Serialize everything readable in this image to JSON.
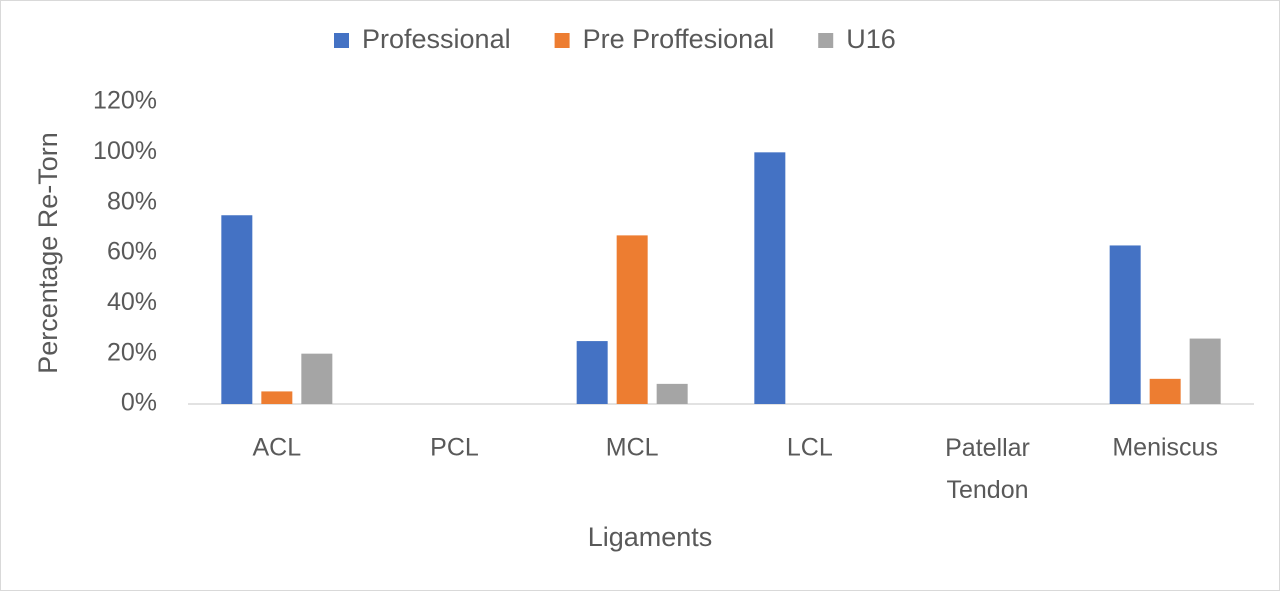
{
  "chart_data": {
    "type": "bar",
    "y_label": "Percentage Re-Torn",
    "x_label": "Ligaments",
    "categories": [
      "ACL",
      "PCL",
      "MCL",
      "LCL",
      "Patellar Tendon",
      "Meniscus"
    ],
    "series": [
      {
        "name": "Professional",
        "color": "#4472c4",
        "values": [
          75,
          0,
          25,
          100,
          0,
          63
        ]
      },
      {
        "name": "Pre Proffesional",
        "color": "#ed7d31",
        "values": [
          5,
          0,
          67,
          0,
          0,
          10
        ]
      },
      {
        "name": "U16",
        "color": "#a5a5a5",
        "values": [
          20,
          0,
          8,
          0,
          0,
          26
        ]
      }
    ],
    "ylim": [
      0,
      120
    ],
    "yticks": [
      {
        "value": 0,
        "label": "0%"
      },
      {
        "value": 20,
        "label": "20%"
      },
      {
        "value": 40,
        "label": "40%"
      },
      {
        "value": 60,
        "label": "60%"
      },
      {
        "value": 80,
        "label": "80%"
      },
      {
        "value": 100,
        "label": "100%"
      },
      {
        "value": 120,
        "label": "120%"
      }
    ],
    "grid": false,
    "legend": "top"
  }
}
